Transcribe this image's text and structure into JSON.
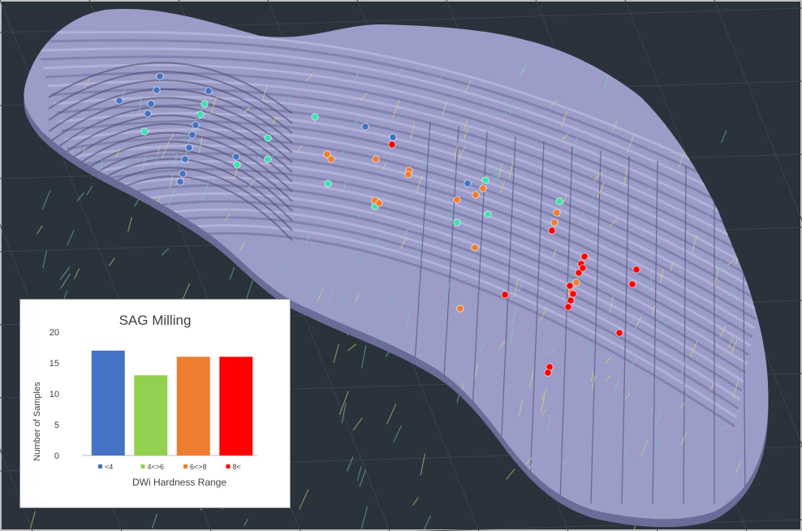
{
  "scene": {
    "background": "#2a323b",
    "pit_color": "#9c9cc8",
    "pit_shadow": "#6c6c98",
    "drillhole_colors": [
      "#7fd3b6",
      "#c8e07a",
      "#5ec8c2",
      "#e5d56a"
    ],
    "samples": [
      {
        "hardness": "lt4",
        "x": 147,
        "y": 124
      },
      {
        "hardness": "lt4",
        "x": 197,
        "y": 94
      },
      {
        "hardness": "lt4",
        "x": 193,
        "y": 111
      },
      {
        "hardness": "lt4",
        "x": 186,
        "y": 128
      },
      {
        "hardness": "lt4",
        "x": 182,
        "y": 140
      },
      {
        "hardness": "lt4",
        "x": 257,
        "y": 112
      },
      {
        "hardness": "lt4",
        "x": 245,
        "y": 142
      },
      {
        "hardness": "lt4",
        "x": 241,
        "y": 154
      },
      {
        "hardness": "lt4",
        "x": 237,
        "y": 166
      },
      {
        "hardness": "lt4",
        "x": 233,
        "y": 182
      },
      {
        "hardness": "lt4",
        "x": 228,
        "y": 196
      },
      {
        "hardness": "lt4",
        "x": 225,
        "y": 214
      },
      {
        "hardness": "lt4",
        "x": 222,
        "y": 224
      },
      {
        "hardness": "lt4",
        "x": 291,
        "y": 193
      },
      {
        "hardness": "lt4",
        "x": 450,
        "y": 156
      },
      {
        "hardness": "lt4",
        "x": 484,
        "y": 169
      },
      {
        "hardness": "lt4",
        "x": 576,
        "y": 226
      },
      {
        "hardness": "4to6",
        "x": 178,
        "y": 162
      },
      {
        "hardness": "4to6",
        "x": 252,
        "y": 128
      },
      {
        "hardness": "4to6",
        "x": 247,
        "y": 141
      },
      {
        "hardness": "4to6",
        "x": 292,
        "y": 203
      },
      {
        "hardness": "4to6",
        "x": 330,
        "y": 170
      },
      {
        "hardness": "4to6",
        "x": 330,
        "y": 196
      },
      {
        "hardness": "4to6",
        "x": 388,
        "y": 144
      },
      {
        "hardness": "4to6",
        "x": 462,
        "y": 254
      },
      {
        "hardness": "4to6",
        "x": 598,
        "y": 222
      },
      {
        "hardness": "4to6",
        "x": 601,
        "y": 264
      },
      {
        "hardness": "4to6",
        "x": 563,
        "y": 274
      },
      {
        "hardness": "4to6",
        "x": 689,
        "y": 248
      },
      {
        "hardness": "4to6",
        "x": 404,
        "y": 226
      },
      {
        "hardness": "6to8",
        "x": 403,
        "y": 190
      },
      {
        "hardness": "6to8",
        "x": 463,
        "y": 196
      },
      {
        "hardness": "6to8",
        "x": 504,
        "y": 210
      },
      {
        "hardness": "6to8",
        "x": 462,
        "y": 247
      },
      {
        "hardness": "6to8",
        "x": 595,
        "y": 232
      },
      {
        "hardness": "6to8",
        "x": 585,
        "y": 305
      },
      {
        "hardness": "6to8",
        "x": 567,
        "y": 380
      },
      {
        "hardness": "6to8",
        "x": 686,
        "y": 262
      },
      {
        "hardness": "6to8",
        "x": 683,
        "y": 274
      },
      {
        "hardness": "6to8",
        "x": 710,
        "y": 348
      },
      {
        "hardness": "6to8",
        "x": 704,
        "y": 360
      },
      {
        "hardness": "6to8",
        "x": 563,
        "y": 246
      },
      {
        "hardness": "6to8",
        "x": 503,
        "y": 215
      },
      {
        "hardness": "6to8",
        "x": 586,
        "y": 240
      },
      {
        "hardness": "6to8",
        "x": 408,
        "y": 196
      },
      {
        "hardness": "6to8",
        "x": 467,
        "y": 250
      },
      {
        "hardness": "gt8",
        "x": 483,
        "y": 178
      },
      {
        "hardness": "gt8",
        "x": 680,
        "y": 284
      },
      {
        "hardness": "gt8",
        "x": 720,
        "y": 316
      },
      {
        "hardness": "gt8",
        "x": 716,
        "y": 325
      },
      {
        "hardness": "gt8",
        "x": 713,
        "y": 336
      },
      {
        "hardness": "gt8",
        "x": 706,
        "y": 362
      },
      {
        "hardness": "gt8",
        "x": 703,
        "y": 370
      },
      {
        "hardness": "gt8",
        "x": 700,
        "y": 378
      },
      {
        "hardness": "gt8",
        "x": 622,
        "y": 363
      },
      {
        "hardness": "gt8",
        "x": 784,
        "y": 332
      },
      {
        "hardness": "gt8",
        "x": 779,
        "y": 350
      },
      {
        "hardness": "gt8",
        "x": 763,
        "y": 410
      },
      {
        "hardness": "gt8",
        "x": 677,
        "y": 452
      },
      {
        "hardness": "gt8",
        "x": 675,
        "y": 459
      },
      {
        "hardness": "gt8",
        "x": 702,
        "y": 352
      },
      {
        "hardness": "gt8",
        "x": 718,
        "y": 330
      }
    ]
  },
  "chart_data": {
    "type": "bar",
    "title": "SAG Milling",
    "xlabel": "DWi Hardness Range",
    "ylabel": "Number of Samples",
    "categories": [
      "<4",
      "4<>6",
      "6<>8",
      "8<"
    ],
    "values": [
      17,
      13,
      16,
      16
    ],
    "colors": [
      "#4472c4",
      "#92d050",
      "#ed7d31",
      "#ff0000"
    ],
    "ylim": [
      0,
      20
    ],
    "yticks": [
      0,
      5,
      10,
      15,
      20
    ],
    "grid": false,
    "legend": "bottom"
  }
}
